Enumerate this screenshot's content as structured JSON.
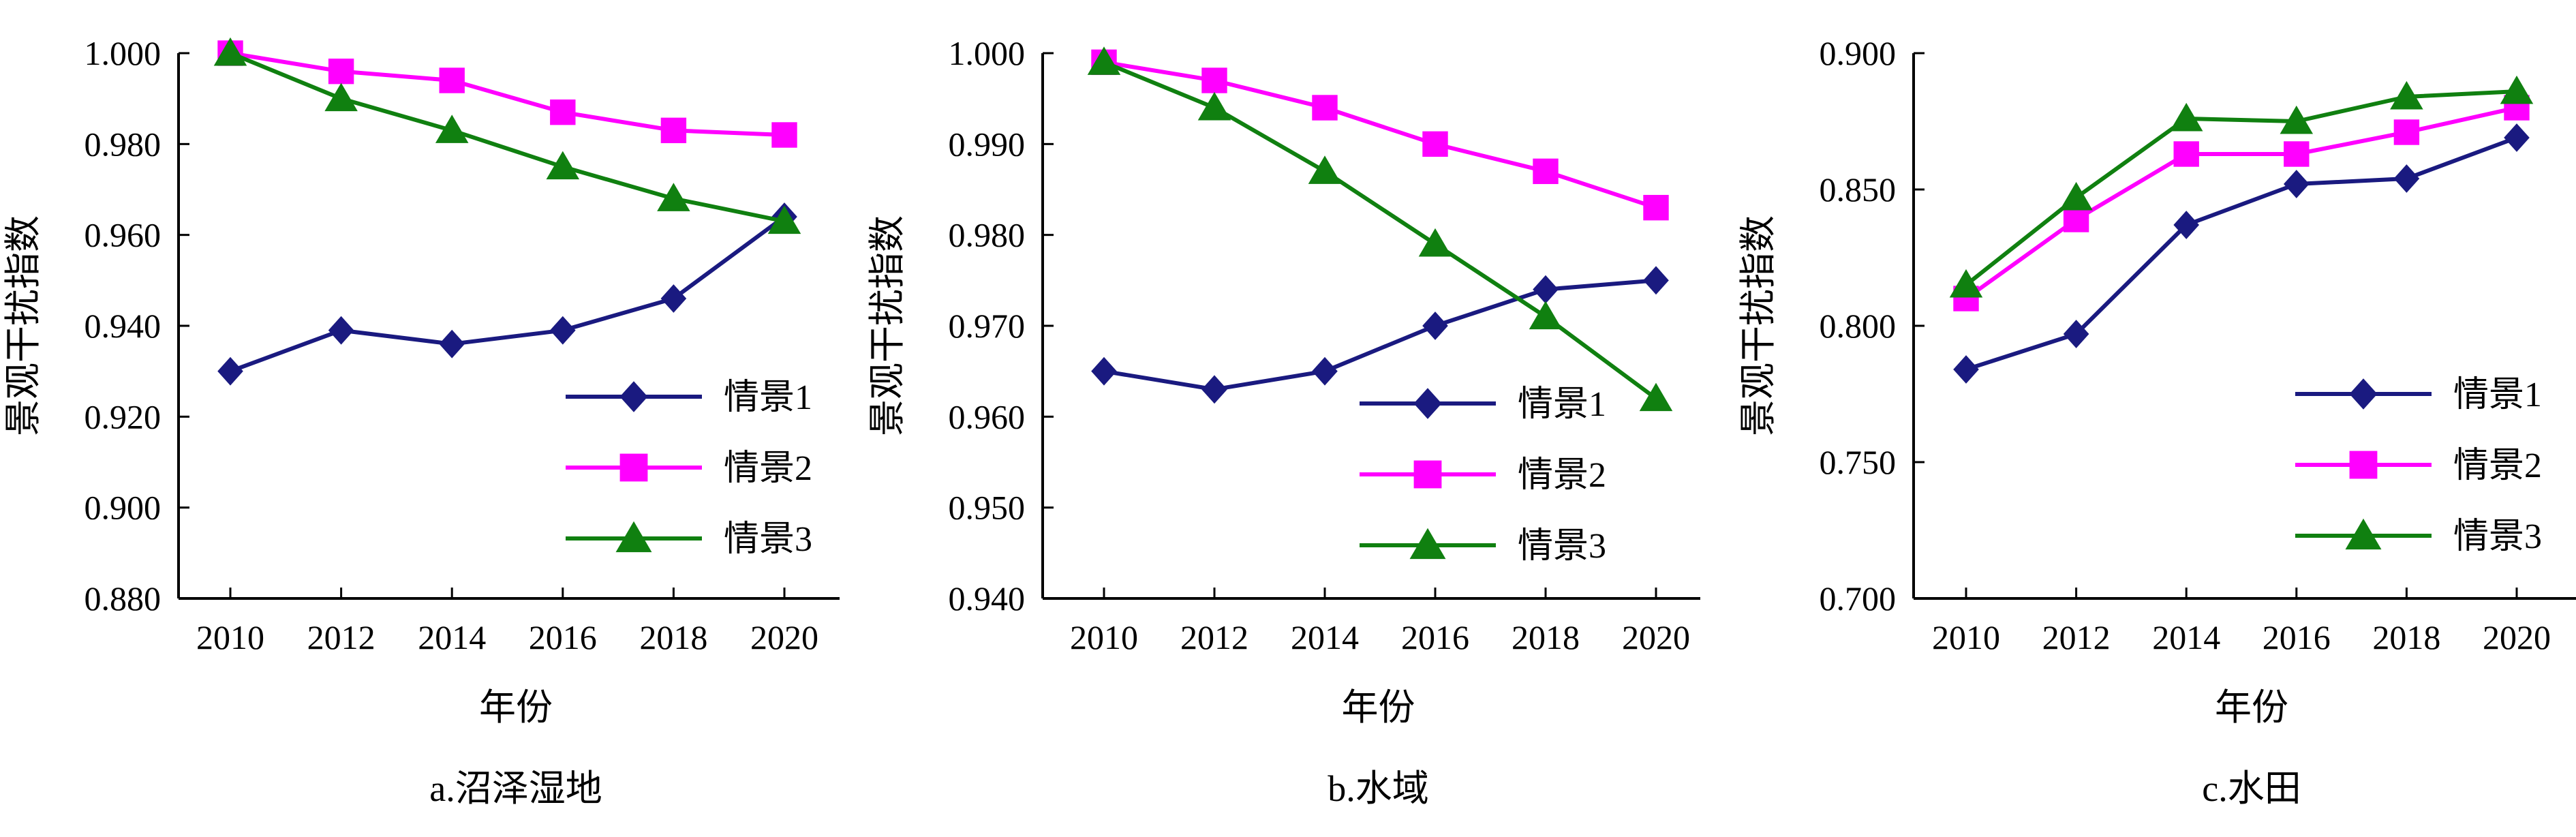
{
  "colors": {
    "series1": "#1a1a80",
    "series2": "#ff00ff",
    "series3": "#108010",
    "axis": "#000000"
  },
  "chart_data": [
    {
      "type": "line",
      "caption": "a.沼泽湿地",
      "xlabel": "年份",
      "ylabel": "景观干扰指数",
      "x": [
        2010,
        2012,
        2014,
        2016,
        2018,
        2020
      ],
      "xticks": [
        "2010",
        "2012",
        "2014",
        "2016",
        "2018",
        "2020"
      ],
      "ylim": [
        0.88,
        1.0
      ],
      "yticks": [
        "0.880",
        "0.900",
        "0.920",
        "0.940",
        "0.960",
        "0.980",
        "1.000"
      ],
      "legend_position": "bottom-right",
      "series": [
        {
          "name": "情景1",
          "marker": "diamond",
          "values": [
            0.93,
            0.939,
            0.936,
            0.939,
            0.946,
            0.964
          ]
        },
        {
          "name": "情景2",
          "marker": "square",
          "values": [
            1.0,
            0.996,
            0.994,
            0.987,
            0.983,
            0.982
          ]
        },
        {
          "name": "情景3",
          "marker": "triangle",
          "values": [
            1.0,
            0.99,
            0.983,
            0.975,
            0.968,
            0.963
          ]
        }
      ]
    },
    {
      "type": "line",
      "caption": "b.水域",
      "xlabel": "年份",
      "ylabel": "景观干扰指数",
      "x": [
        2010,
        2012,
        2014,
        2016,
        2018,
        2020
      ],
      "xticks": [
        "2010",
        "2012",
        "2014",
        "2016",
        "2018",
        "2020"
      ],
      "ylim": [
        0.94,
        1.0
      ],
      "yticks": [
        "0.940",
        "0.950",
        "0.960",
        "0.970",
        "0.980",
        "0.990",
        "1.000"
      ],
      "legend_position": "bottom-right",
      "series": [
        {
          "name": "情景1",
          "marker": "diamond",
          "values": [
            0.965,
            0.963,
            0.965,
            0.97,
            0.974,
            0.975
          ]
        },
        {
          "name": "情景2",
          "marker": "square",
          "values": [
            0.999,
            0.997,
            0.994,
            0.99,
            0.987,
            0.983
          ]
        },
        {
          "name": "情景3",
          "marker": "triangle",
          "values": [
            0.999,
            0.994,
            0.987,
            0.979,
            0.971,
            0.962
          ]
        }
      ]
    },
    {
      "type": "line",
      "caption": "c.水田",
      "xlabel": "年份",
      "ylabel": "景观干扰指数",
      "x": [
        2010,
        2012,
        2014,
        2016,
        2018,
        2020
      ],
      "xticks": [
        "2010",
        "2012",
        "2014",
        "2016",
        "2018",
        "2020"
      ],
      "ylim": [
        0.7,
        0.9
      ],
      "yticks": [
        "0.700",
        "0.750",
        "0.800",
        "0.850",
        "0.900"
      ],
      "legend_position": "bottom-right",
      "series": [
        {
          "name": "情景1",
          "marker": "diamond",
          "values": [
            0.784,
            0.797,
            0.837,
            0.852,
            0.854,
            0.869
          ]
        },
        {
          "name": "情景2",
          "marker": "square",
          "values": [
            0.81,
            0.839,
            0.863,
            0.863,
            0.871,
            0.88
          ]
        },
        {
          "name": "情景3",
          "marker": "triangle",
          "values": [
            0.815,
            0.847,
            0.876,
            0.875,
            0.884,
            0.886
          ]
        }
      ]
    }
  ]
}
